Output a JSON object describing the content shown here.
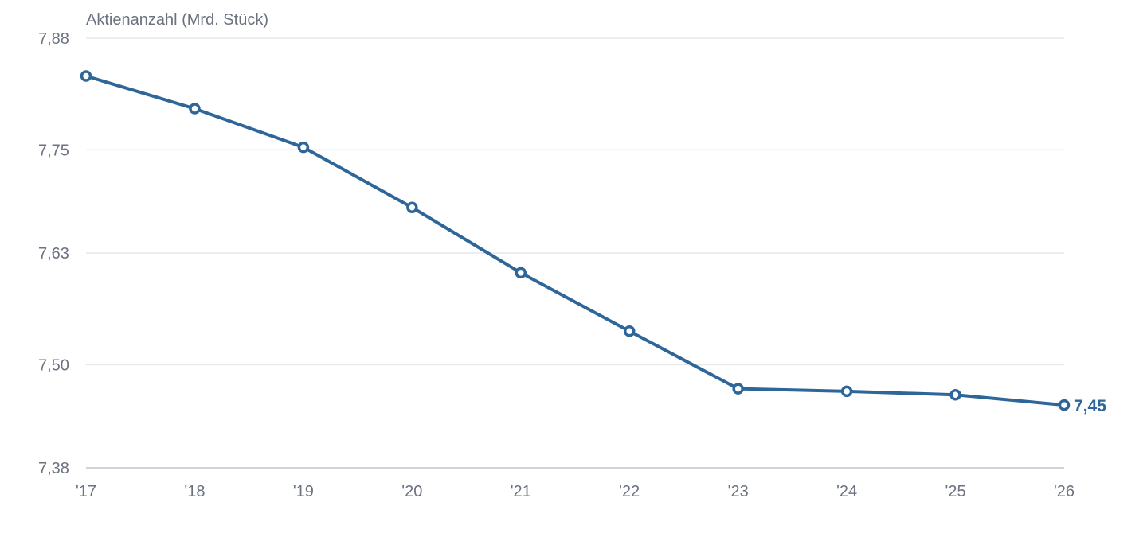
{
  "chart_data": {
    "type": "line",
    "ylabel": "Aktienanzahl (Mrd. Stück)",
    "xlabel": "",
    "categories": [
      "'17",
      "'18",
      "'19",
      "'20",
      "'21",
      "'22",
      "'23",
      "'24",
      "'25",
      "'26"
    ],
    "series": [
      {
        "values": [
          7.836,
          7.798,
          7.753,
          7.683,
          7.607,
          7.539,
          7.472,
          7.469,
          7.465,
          7.453
        ]
      }
    ],
    "ylim": [
      7.38,
      7.88
    ],
    "yticks": [
      7.38,
      7.5,
      7.63,
      7.75,
      7.88
    ],
    "ytick_labels": [
      "7,38",
      "7,50",
      "7,63",
      "7,75",
      "7,88"
    ],
    "end_label": "7,45",
    "grid": true,
    "legend": "none",
    "colors": {
      "series": "#2f6699",
      "grid": "#e5e7eb",
      "text": "#6b7280"
    }
  }
}
